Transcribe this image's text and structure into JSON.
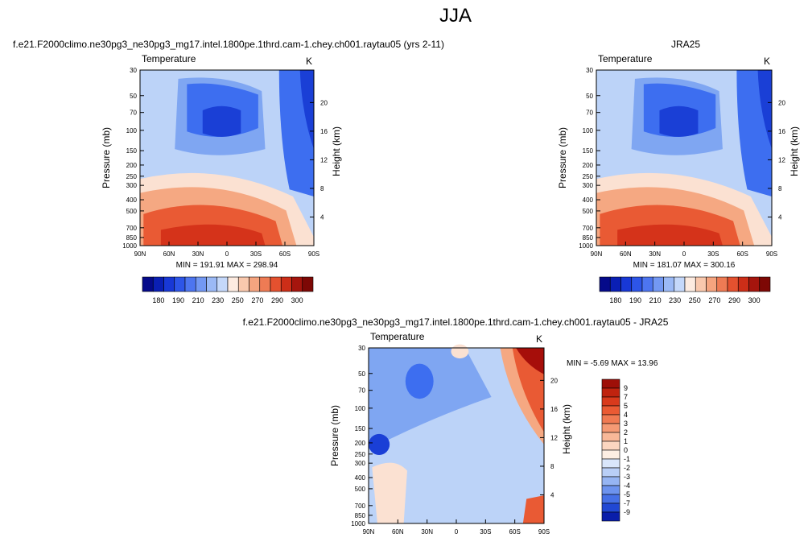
{
  "page": {
    "title": "JJA"
  },
  "colors": {
    "cold_deep": "#1a3fd6",
    "cold": "#3d6ef0",
    "cool": "#7fa6f2",
    "pale_blue": "#bcd3f8",
    "pale": "#fbe1d2",
    "warm": "#f5a882",
    "hot": "#e95a34",
    "hotter": "#d5331a",
    "dark_red": "#a60e0a"
  },
  "chart_data": [
    {
      "id": "model",
      "type": "contour",
      "title": "f.e21.F2000climo.ne30pg3_ne30pg3_mg17.intel.1800pe.1thrd.cam-1.chey.ch001.raytau05 (yrs 2-11)",
      "left_label": "Temperature",
      "right_label": "K",
      "ylabel": "Pressure (mb)",
      "ylabel_right": "Height (km)",
      "xticks": [
        "90N",
        "60N",
        "30N",
        "0",
        "30S",
        "60S",
        "90S"
      ],
      "yticks": [
        "30",
        "50",
        "70",
        "100",
        "150",
        "200",
        "250",
        "300",
        "400",
        "500",
        "700",
        "850",
        "1000"
      ],
      "yticks_right": [
        "20",
        "16",
        "12",
        "8",
        "4"
      ],
      "stats": "MIN = 191.91   MAX = 298.94",
      "colorbar": {
        "orientation": "horizontal",
        "labels": [
          "180",
          "190",
          "210",
          "230",
          "250",
          "270",
          "290",
          "300"
        ],
        "colors": [
          "#050a8a",
          "#0a1fb4",
          "#1838d6",
          "#2d55e8",
          "#4d75f0",
          "#7398f3",
          "#9bb9f6",
          "#c5d8fa",
          "#fdebe0",
          "#f9c8ad",
          "#f5a47f",
          "#ee7b54",
          "#e4512f",
          "#cc2e18",
          "#a5150d",
          "#7d0805"
        ]
      }
    },
    {
      "id": "obs",
      "type": "contour",
      "title": "JRA25",
      "left_label": "Temperature",
      "right_label": "K",
      "ylabel": "Pressure (mb)",
      "ylabel_right": "Height (km)",
      "xticks": [
        "90N",
        "60N",
        "30N",
        "0",
        "30S",
        "60S",
        "90S"
      ],
      "yticks": [
        "30",
        "50",
        "70",
        "100",
        "150",
        "200",
        "250",
        "300",
        "400",
        "500",
        "700",
        "850",
        "1000"
      ],
      "yticks_right": [
        "20",
        "16",
        "12",
        "8",
        "4"
      ],
      "stats": "MIN = 181.07   MAX = 300.16",
      "colorbar": {
        "orientation": "horizontal",
        "labels": [
          "180",
          "190",
          "210",
          "230",
          "250",
          "270",
          "290",
          "300"
        ],
        "colors": [
          "#050a8a",
          "#0a1fb4",
          "#1838d6",
          "#2d55e8",
          "#4d75f0",
          "#7398f3",
          "#9bb9f6",
          "#c5d8fa",
          "#fdebe0",
          "#f9c8ad",
          "#f5a47f",
          "#ee7b54",
          "#e4512f",
          "#cc2e18",
          "#a5150d",
          "#7d0805"
        ]
      }
    },
    {
      "id": "diff",
      "type": "contour",
      "title": "f.e21.F2000climo.ne30pg3_ne30pg3_mg17.intel.1800pe.1thrd.cam-1.chey.ch001.raytau05 - JRA25",
      "left_label": "Temperature",
      "right_label": "K",
      "ylabel": "Pressure (mb)",
      "ylabel_right": "Height (km)",
      "xticks": [
        "90N",
        "60N",
        "30N",
        "0",
        "30S",
        "60S",
        "90S"
      ],
      "yticks": [
        "30",
        "50",
        "70",
        "100",
        "150",
        "200",
        "250",
        "300",
        "400",
        "500",
        "700",
        "850",
        "1000"
      ],
      "yticks_right": [
        "20",
        "16",
        "12",
        "8",
        "4"
      ],
      "stats": "MIN = -5.69   MAX = 13.96",
      "colorbar": {
        "orientation": "vertical",
        "labels": [
          "9",
          "7",
          "5",
          "4",
          "3",
          "2",
          "1",
          "0",
          "-1",
          "-2",
          "-3",
          "-4",
          "-5",
          "-7",
          "-9"
        ],
        "colors": [
          "#9e0f08",
          "#c0230f",
          "#d93a1c",
          "#ea5a33",
          "#f07a52",
          "#f59a74",
          "#f8b898",
          "#fbd6c0",
          "#fdeee3",
          "#d9e6fb",
          "#b9cff7",
          "#96b5f3",
          "#6d93ee",
          "#4670e6",
          "#2148d4",
          "#0a1eaa"
        ]
      }
    }
  ]
}
